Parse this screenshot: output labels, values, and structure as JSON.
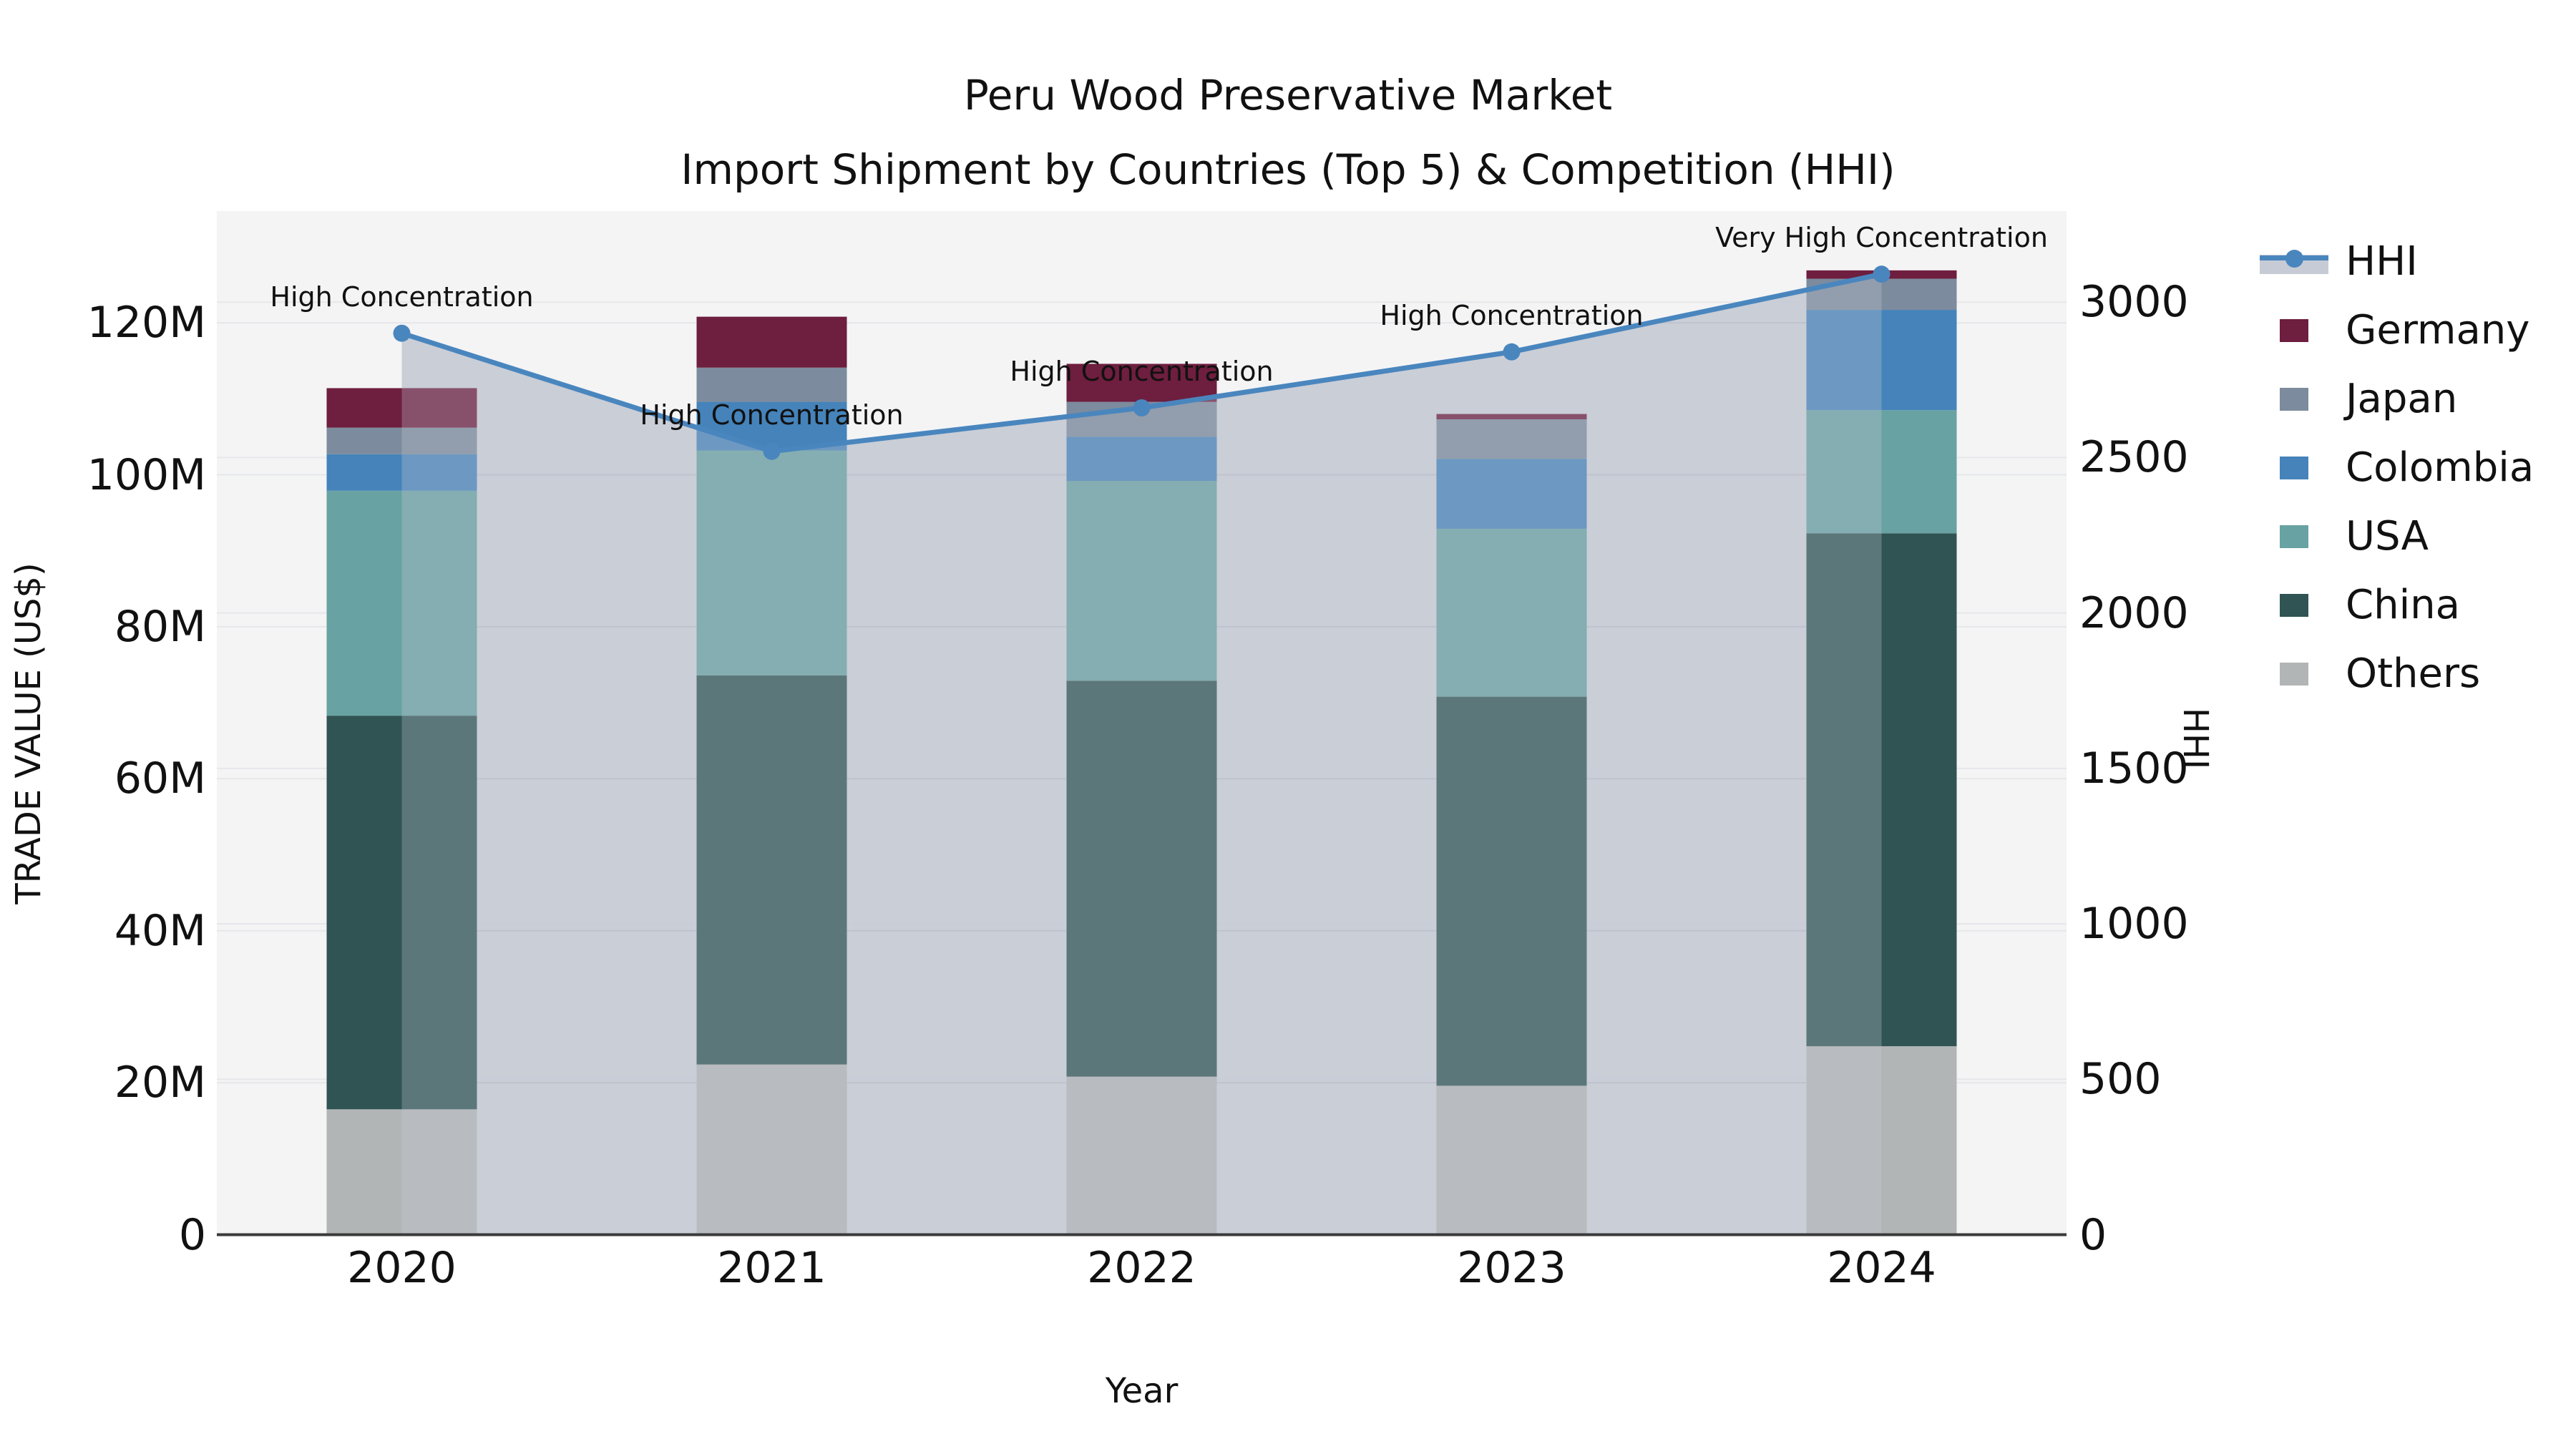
{
  "title": {
    "line1": "Peru Wood Preservative Market",
    "line2": "Import Shipment by Countries (Top 5) & Competition (HHI)"
  },
  "chart_data": {
    "type": "combo-stacked-bar-line",
    "categories": [
      "2020",
      "2021",
      "2022",
      "2023",
      "2024"
    ],
    "bar_value_unit": "million US$",
    "stack_order_bottom_to_top": [
      "Others",
      "China",
      "USA",
      "Colombia",
      "Japan",
      "Germany"
    ],
    "series": [
      {
        "name": "Others",
        "color": "#b2b5b6",
        "values": [
          16.5,
          22.4,
          20.8,
          19.6,
          24.8
        ]
      },
      {
        "name": "China",
        "color": "#2f5453",
        "values": [
          51.8,
          51.2,
          52.1,
          51.2,
          67.5
        ]
      },
      {
        "name": "USA",
        "color": "#68a2a3",
        "values": [
          29.6,
          29.6,
          26.3,
          22.1,
          16.2
        ]
      },
      {
        "name": "Colombia",
        "color": "#4583ba",
        "values": [
          4.8,
          6.4,
          5.8,
          9.2,
          13.2
        ]
      },
      {
        "name": "Japan",
        "color": "#7c8b9d",
        "values": [
          3.5,
          4.5,
          4.6,
          5.2,
          4.1
        ]
      },
      {
        "name": "Germany",
        "color": "#6e1e3e",
        "values": [
          5.2,
          6.7,
          5.0,
          0.7,
          1.1
        ]
      }
    ],
    "line_series": {
      "name": "HHI",
      "color": "#4a86be",
      "area_fill_color": "#c6cbd5",
      "values": [
        2900,
        2520,
        2660,
        2840,
        3090
      ]
    },
    "annotations": [
      {
        "year": "2020",
        "text": "High Concentration"
      },
      {
        "year": "2021",
        "text": "High Concentration"
      },
      {
        "year": "2022",
        "text": "High Concentration"
      },
      {
        "year": "2023",
        "text": "High Concentration"
      },
      {
        "year": "2024",
        "text": "Very High Concentration"
      }
    ],
    "left_axis": {
      "label": "TRADE VALUE (US$)",
      "tick_labels": [
        "0",
        "20M",
        "40M",
        "60M",
        "80M",
        "100M",
        "120M"
      ],
      "tick_values": [
        0,
        20,
        40,
        60,
        80,
        100,
        120
      ],
      "range": [
        0,
        134.7
      ]
    },
    "right_axis": {
      "label": "HHI",
      "tick_labels": [
        "0",
        "500",
        "1000",
        "1500",
        "2000",
        "2500",
        "3000"
      ],
      "tick_values": [
        0,
        500,
        1000,
        1500,
        2000,
        2500,
        3000
      ],
      "range": [
        0,
        3293
      ]
    },
    "xlabel": "Year",
    "legend_order": [
      "HHI",
      "Germany",
      "Japan",
      "Colombia",
      "USA",
      "China",
      "Others"
    ],
    "plot_background": "#f4f4f5",
    "gridline_color": "#e6e7ea",
    "axis_line_color": "#3a3a3a"
  }
}
